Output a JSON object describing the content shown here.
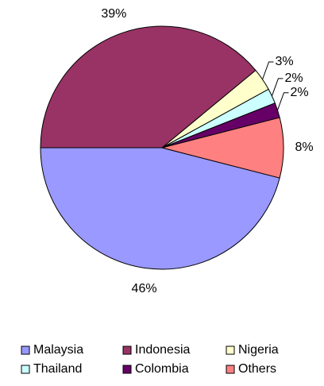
{
  "chart_data": {
    "type": "pie",
    "categories": [
      "Malaysia",
      "Indonesia",
      "Nigeria",
      "Thailand",
      "Colombia",
      "Others"
    ],
    "values": [
      46,
      39,
      3,
      2,
      2,
      8
    ],
    "value_labels": [
      "46%",
      "39%",
      "3%",
      "2%",
      "2%",
      "8%"
    ],
    "colors": [
      "#9999ff",
      "#993366",
      "#ffffcc",
      "#ccffff",
      "#660066",
      "#ff8080"
    ],
    "legend": "bottom"
  }
}
